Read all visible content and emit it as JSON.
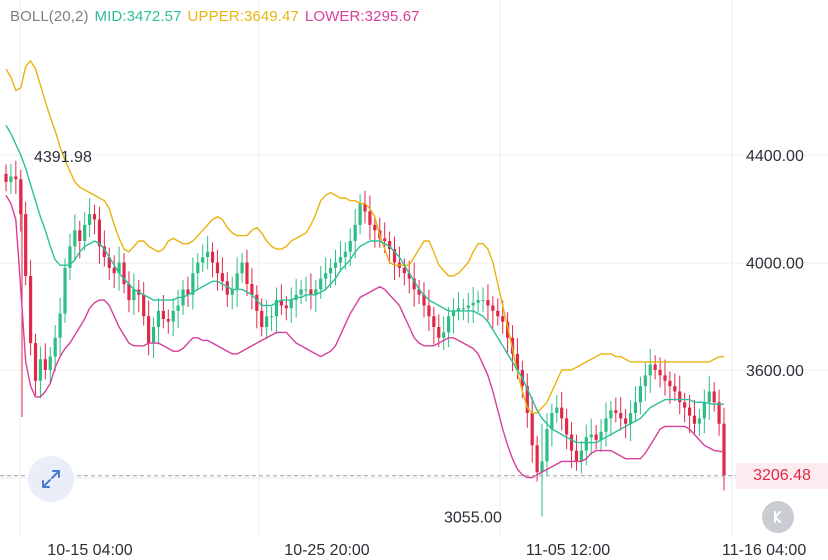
{
  "legend": {
    "name": "BOLL(20,2)",
    "mid": "MID:3472.57",
    "upper": "UPPER:3649.47",
    "lower": "LOWER:3295.67"
  },
  "colors": {
    "mid": "#2dbf9a",
    "upper": "#e8b40e",
    "lower": "#d63f9a",
    "up_candle": "#2ebd85",
    "down_candle": "#e0294a",
    "grid": "#eceef1",
    "last_price_line": "#9aa0a8"
  },
  "price_axis": {
    "ticks": [
      "4400.00",
      "4000.00",
      "3600.00"
    ]
  },
  "time_axis": {
    "ticks": [
      "10-15 04:00",
      "10-25 20:00",
      "11-05 12:00",
      "11-16 04:00"
    ]
  },
  "annotations": {
    "high_label": "4391.98",
    "low_label": "3055.00"
  },
  "last_price": "3206.48",
  "icons": {
    "zoom": "expand-arrows-icon",
    "back": "chevron-left-icon"
  },
  "chart_data": {
    "type": "candlestick",
    "x_ticks": [
      "10-15 04:00",
      "10-25 20:00",
      "11-05 12:00",
      "11-16 04:00"
    ],
    "y_ticks": [
      4400,
      4000,
      3600
    ],
    "series_names": [
      "MID",
      "UPPER",
      "LOWER"
    ],
    "latest": {
      "MID": 3472.57,
      "UPPER": 3649.47,
      "LOWER": 3295.67
    },
    "highest": 4391.98,
    "lowest": 3055.0,
    "last_price": 3206.48,
    "close": [
      4300,
      4320,
      4310,
      4180,
      3950,
      3700,
      3560,
      3640,
      3600,
      3650,
      3720,
      3810,
      3980,
      4060,
      4120,
      4080,
      4140,
      4180,
      4160,
      4060,
      4020,
      3980,
      3960,
      4000,
      3920,
      3860,
      3900,
      3880,
      3800,
      3700,
      3760,
      3820,
      3790,
      3780,
      3820,
      3840,
      3900,
      3880,
      3960,
      4000,
      4020,
      4040,
      4000,
      3960,
      3930,
      3880,
      3900,
      3960,
      4000,
      3920,
      3880,
      3820,
      3760,
      3800,
      3800,
      3860,
      3840,
      3830,
      3860,
      3880,
      3900,
      3900,
      3880,
      3900,
      3940,
      3960,
      3980,
      4000,
      4020,
      4040,
      4080,
      4140,
      4220,
      4190,
      4140,
      4120,
      4090,
      4080,
      4050,
      4000,
      3980,
      3960,
      3940,
      3900,
      3880,
      3840,
      3800,
      3760,
      3720,
      3740,
      3800,
      3820,
      3830,
      3830,
      3840,
      3850,
      3860,
      3860,
      3840,
      3820,
      3800,
      3780,
      3720,
      3660,
      3600,
      3540,
      3440,
      3320,
      3220,
      3260,
      3380,
      3440,
      3460,
      3420,
      3360,
      3300,
      3260,
      3300,
      3350,
      3360,
      3340,
      3370,
      3420,
      3450,
      3440,
      3420,
      3400,
      3440,
      3480,
      3540,
      3580,
      3620,
      3600,
      3580,
      3560,
      3540,
      3520,
      3480,
      3460,
      3430,
      3400,
      3420,
      3480,
      3520,
      3480,
      3400,
      3206.48
    ],
    "mid": [
      4510,
      4480,
      4440,
      4400,
      4350,
      4290,
      4230,
      4170,
      4120,
      4060,
      4010,
      3990,
      3990,
      3990,
      4010,
      4040,
      4060,
      4070,
      4080,
      4070,
      4050,
      4020,
      3990,
      3960,
      3940,
      3920,
      3900,
      3890,
      3880,
      3870,
      3860,
      3860,
      3860,
      3860,
      3860,
      3870,
      3870,
      3880,
      3890,
      3900,
      3910,
      3920,
      3930,
      3930,
      3920,
      3910,
      3900,
      3900,
      3900,
      3890,
      3880,
      3860,
      3840,
      3840,
      3840,
      3850,
      3860,
      3860,
      3860,
      3870,
      3870,
      3880,
      3880,
      3880,
      3890,
      3900,
      3920,
      3940,
      3970,
      3990,
      4010,
      4040,
      4060,
      4070,
      4080,
      4080,
      4080,
      4070,
      4060,
      4040,
      4020,
      3990,
      3960,
      3930,
      3900,
      3880,
      3860,
      3850,
      3840,
      3830,
      3820,
      3820,
      3820,
      3820,
      3820,
      3820,
      3810,
      3800,
      3780,
      3750,
      3720,
      3690,
      3660,
      3630,
      3600,
      3570,
      3530,
      3490,
      3450,
      3420,
      3400,
      3380,
      3370,
      3360,
      3350,
      3340,
      3330,
      3330,
      3330,
      3330,
      3330,
      3340,
      3350,
      3360,
      3370,
      3380,
      3390,
      3400,
      3410,
      3420,
      3440,
      3460,
      3470,
      3480,
      3490,
      3490,
      3490,
      3490,
      3490,
      3490,
      3480,
      3480,
      3480,
      3475,
      3472.57,
      3472.57,
      3472.57
    ],
    "upper": [
      4720,
      4690,
      4640,
      4650,
      4730,
      4750,
      4720,
      4660,
      4600,
      4540,
      4490,
      4430,
      4380,
      4340,
      4300,
      4280,
      4270,
      4260,
      4250,
      4240,
      4230,
      4200,
      4140,
      4090,
      4050,
      4040,
      4060,
      4080,
      4080,
      4060,
      4050,
      4040,
      4050,
      4080,
      4090,
      4080,
      4070,
      4070,
      4080,
      4100,
      4120,
      4140,
      4160,
      4170,
      4160,
      4130,
      4110,
      4100,
      4100,
      4100,
      4120,
      4130,
      4110,
      4080,
      4060,
      4050,
      4050,
      4060,
      4080,
      4090,
      4100,
      4110,
      4140,
      4180,
      4230,
      4250,
      4260,
      4250,
      4240,
      4240,
      4230,
      4230,
      4220,
      4220,
      4200,
      4170,
      4100,
      4050,
      4000,
      3990,
      3990,
      3990,
      3990,
      4020,
      4050,
      4080,
      4080,
      4040,
      3990,
      3970,
      3950,
      3950,
      3960,
      3980,
      4000,
      4040,
      4070,
      4070,
      4050,
      4000,
      3920,
      3840,
      3760,
      3680,
      3590,
      3520,
      3460,
      3440,
      3440,
      3460,
      3480,
      3520,
      3560,
      3600,
      3600,
      3600,
      3610,
      3620,
      3630,
      3640,
      3650,
      3660,
      3660,
      3660,
      3650,
      3650,
      3640,
      3630,
      3630,
      3630,
      3630,
      3630,
      3630,
      3630,
      3630,
      3630,
      3630,
      3630,
      3630,
      3630,
      3630,
      3630,
      3630,
      3630,
      3640,
      3649.47,
      3649.47
    ],
    "lower": [
      4250,
      4220,
      4160,
      3900,
      3630,
      3540,
      3500,
      3500,
      3520,
      3550,
      3610,
      3650,
      3680,
      3700,
      3730,
      3760,
      3790,
      3830,
      3850,
      3860,
      3860,
      3840,
      3800,
      3760,
      3730,
      3700,
      3690,
      3690,
      3690,
      3700,
      3700,
      3700,
      3690,
      3680,
      3670,
      3670,
      3680,
      3700,
      3720,
      3720,
      3710,
      3710,
      3700,
      3690,
      3680,
      3670,
      3660,
      3660,
      3670,
      3680,
      3690,
      3700,
      3710,
      3720,
      3730,
      3740,
      3740,
      3740,
      3720,
      3700,
      3690,
      3680,
      3670,
      3660,
      3650,
      3660,
      3670,
      3690,
      3730,
      3770,
      3810,
      3840,
      3870,
      3880,
      3890,
      3900,
      3910,
      3900,
      3880,
      3860,
      3840,
      3800,
      3760,
      3720,
      3700,
      3690,
      3690,
      3690,
      3700,
      3710,
      3720,
      3720,
      3710,
      3700,
      3690,
      3680,
      3660,
      3620,
      3580,
      3520,
      3450,
      3380,
      3320,
      3270,
      3230,
      3210,
      3200,
      3200,
      3210,
      3220,
      3230,
      3240,
      3250,
      3260,
      3260,
      3260,
      3260,
      3260,
      3270,
      3290,
      3300,
      3300,
      3300,
      3300,
      3290,
      3280,
      3270,
      3270,
      3270,
      3270,
      3290,
      3320,
      3350,
      3380,
      3390,
      3390,
      3390,
      3390,
      3390,
      3380,
      3360,
      3340,
      3320,
      3310,
      3300,
      3298,
      3295.67
    ]
  }
}
